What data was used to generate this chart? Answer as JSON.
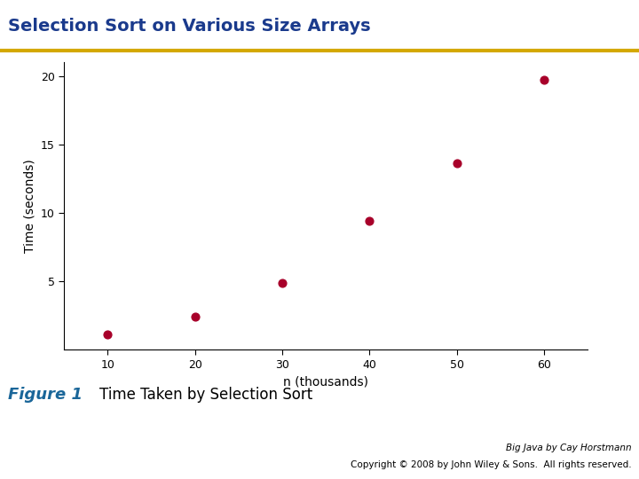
{
  "title": "Selection Sort on Various Size Arrays",
  "title_color": "#1a3a8c",
  "title_fontsize": 14,
  "header_line_color": "#d4a800",
  "x_values": [
    10,
    20,
    30,
    40,
    50,
    60
  ],
  "y_values": [
    1.1,
    2.4,
    4.9,
    9.4,
    13.6,
    19.7
  ],
  "xlabel": "n (thousands)",
  "ylabel": "Time (seconds)",
  "xlim": [
    5,
    65
  ],
  "ylim": [
    0,
    21
  ],
  "xticks": [
    10,
    20,
    30,
    40,
    50,
    60
  ],
  "yticks": [
    5,
    10,
    15,
    20
  ],
  "dot_color": "#a8002a",
  "dot_size": 40,
  "figure_label": "Figure 1",
  "figure_label_color": "#1a6699",
  "figure_caption": "Time Taken by Selection Sort",
  "copyright_line1": "Big Java by Cay Horstmann",
  "copyright_line2": "Copyright © 2008 by John Wiley & Sons.  All rights reserved.",
  "bg_color": "#ffffff",
  "axis_label_fontsize": 10,
  "tick_fontsize": 9,
  "caption_fontsize": 12,
  "figure_label_fontsize": 13,
  "copyright_fontsize": 7.5
}
